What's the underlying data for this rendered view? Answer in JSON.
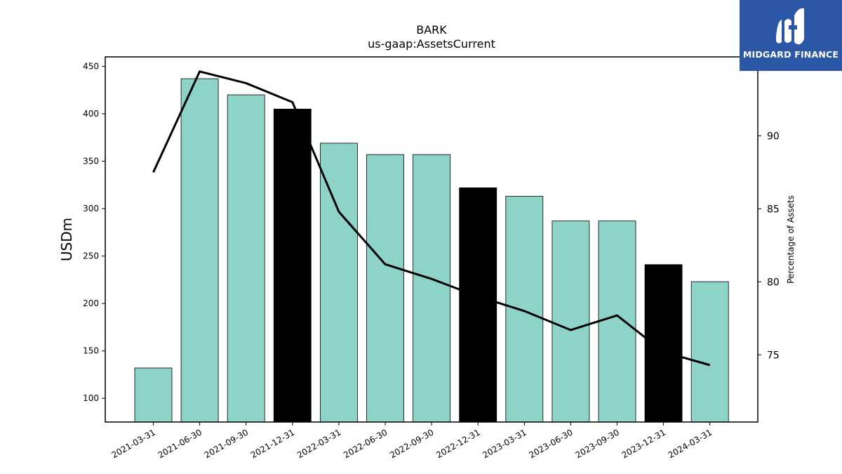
{
  "chart_data": {
    "type": "bar",
    "title": "BARK",
    "subtitle": "us-gaap:AssetsCurrent",
    "ylabel": "USDm",
    "y2label": "Percentage of Assets",
    "categories": [
      "2021-03-31",
      "2021-06-30",
      "2021-09-30",
      "2021-12-31",
      "2022-03-31",
      "2022-06-30",
      "2022-09-30",
      "2022-12-31",
      "2023-03-31",
      "2023-06-30",
      "2023-09-30",
      "2023-12-31",
      "2024-03-31"
    ],
    "values": [
      132,
      437,
      420,
      405,
      369,
      357,
      357,
      322,
      313,
      287,
      287,
      241,
      223
    ],
    "bar_colors": [
      "#8dd3c7",
      "#8dd3c7",
      "#8dd3c7",
      "#000000",
      "#8dd3c7",
      "#8dd3c7",
      "#8dd3c7",
      "#000000",
      "#8dd3c7",
      "#8dd3c7",
      "#8dd3c7",
      "#000000",
      "#8dd3c7"
    ],
    "ylim": [
      75,
      460
    ],
    "yticks": [
      100,
      150,
      200,
      250,
      300,
      350,
      400,
      450
    ],
    "line_series": {
      "values": [
        87.5,
        94.4,
        93.6,
        92.3,
        84.8,
        81.2,
        80.2,
        79.0,
        78.0,
        76.7,
        77.7,
        75.2,
        74.3
      ],
      "color": "#000000"
    },
    "y2lim": [
      70.4,
      95.4
    ],
    "y2ticks": [
      75,
      80,
      85,
      90
    ],
    "grid": false,
    "legend": "none"
  },
  "logo": {
    "text": "MIDGARD FINANCE",
    "color": "#2b57a6"
  }
}
